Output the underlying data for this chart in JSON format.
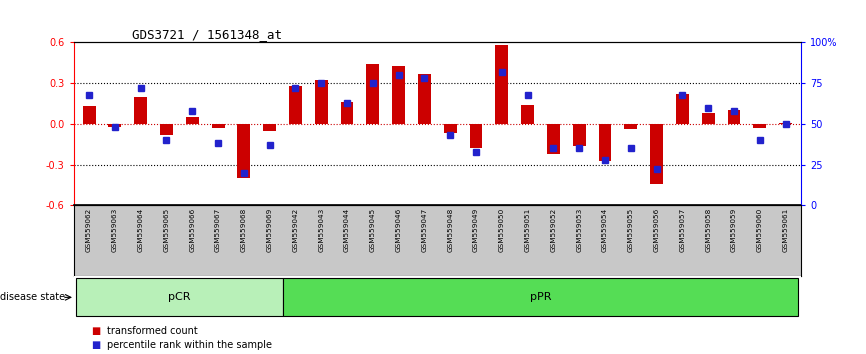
{
  "title": "GDS3721 / 1561348_at",
  "samples": [
    "GSM559062",
    "GSM559063",
    "GSM559064",
    "GSM559065",
    "GSM559066",
    "GSM559067",
    "GSM559068",
    "GSM559069",
    "GSM559042",
    "GSM559043",
    "GSM559044",
    "GSM559045",
    "GSM559046",
    "GSM559047",
    "GSM559048",
    "GSM559049",
    "GSM559050",
    "GSM559051",
    "GSM559052",
    "GSM559053",
    "GSM559054",
    "GSM559055",
    "GSM559056",
    "GSM559057",
    "GSM559058",
    "GSM559059",
    "GSM559060",
    "GSM559061"
  ],
  "transformed_count": [
    0.13,
    -0.02,
    0.2,
    -0.08,
    0.05,
    -0.03,
    -0.4,
    -0.05,
    0.28,
    0.32,
    0.16,
    0.44,
    0.43,
    0.37,
    -0.07,
    -0.18,
    0.58,
    0.14,
    -0.22,
    -0.16,
    -0.27,
    -0.04,
    -0.44,
    0.22,
    0.08,
    0.1,
    -0.03,
    0.01
  ],
  "percentile_rank": [
    68,
    48,
    72,
    40,
    58,
    38,
    20,
    37,
    72,
    75,
    63,
    75,
    80,
    78,
    43,
    33,
    82,
    68,
    35,
    35,
    28,
    35,
    22,
    68,
    60,
    58,
    40,
    50
  ],
  "pCR_count": 8,
  "pPR_count": 20,
  "ylim": [
    -0.6,
    0.6
  ],
  "yticks_left": [
    -0.6,
    -0.3,
    0.0,
    0.3,
    0.6
  ],
  "yticks_right": [
    0,
    25,
    50,
    75,
    100
  ],
  "bar_color": "#cc0000",
  "marker_color": "#2222cc",
  "pCR_color": "#b8f0b8",
  "pPR_color": "#55dd55",
  "bg_color": "#c8c8c8",
  "zero_line_color": "#cc0000"
}
